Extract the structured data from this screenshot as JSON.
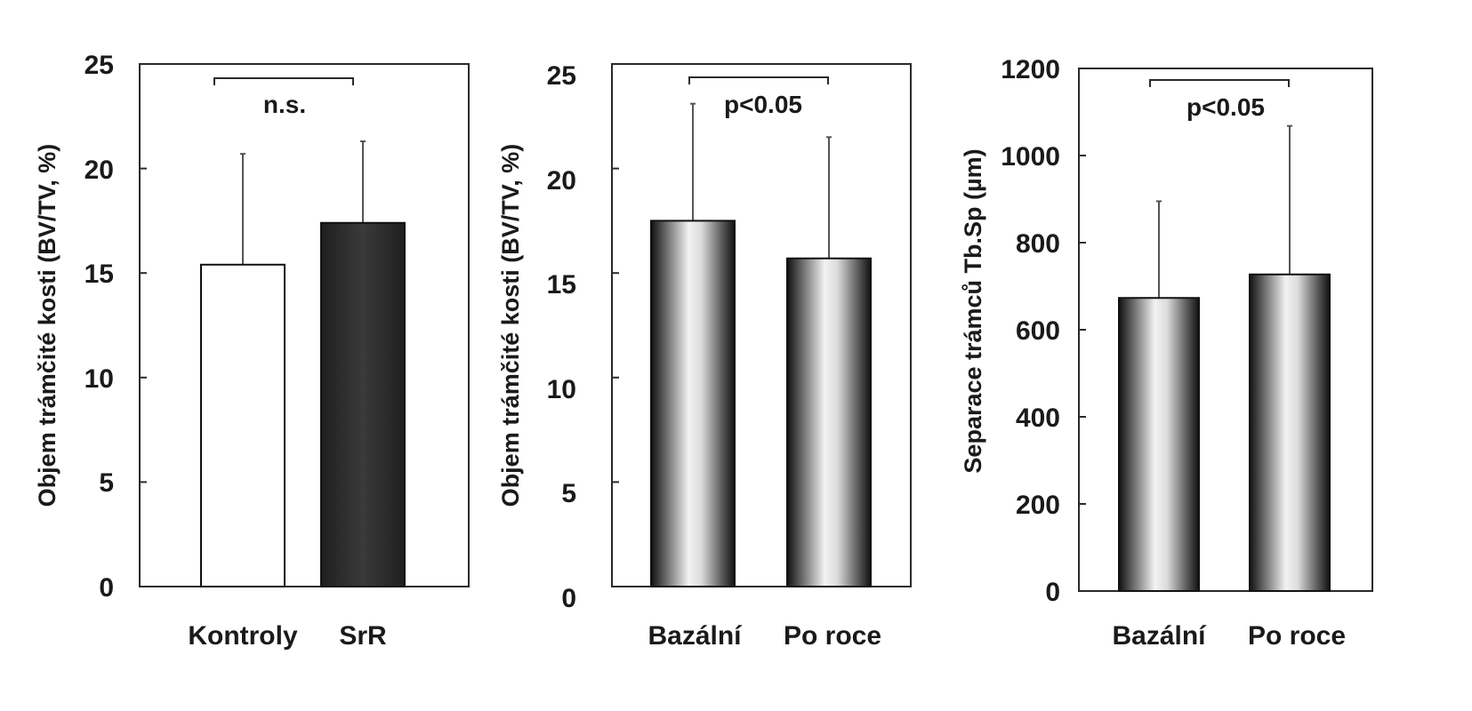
{
  "chart_data": [
    {
      "type": "bar",
      "categories": [
        "Kontroly",
        "SrR"
      ],
      "values": [
        15.4,
        17.4
      ],
      "error_plus": [
        5.3,
        3.9
      ],
      "ylabel": "Objem trámčité kosti (BV/TV, %)",
      "ylim": [
        0,
        25
      ],
      "yticks": [
        0,
        5,
        10,
        15,
        20,
        25
      ],
      "annotation": "n.s.",
      "bar_styles": [
        "white",
        "dark"
      ],
      "grid": false
    },
    {
      "type": "bar",
      "categories": [
        "Bazální",
        "Po roce"
      ],
      "values": [
        17.5,
        15.7
      ],
      "error_plus": [
        5.6,
        5.8
      ],
      "ylabel": "Objem trámčité kosti (BV/TV, %)",
      "ylim": [
        0,
        25
      ],
      "yticks": [
        0,
        5,
        10,
        15,
        20,
        25
      ],
      "annotation": "p<0.05",
      "bar_styles": [
        "gradient",
        "gradient"
      ],
      "grid": false
    },
    {
      "type": "bar",
      "categories": [
        "Bazální",
        "Po roce"
      ],
      "values": [
        673,
        727
      ],
      "error_plus": [
        222,
        341
      ],
      "ylabel": "Separace trámců Tb.Sp (µm)",
      "ylim": [
        0,
        1200
      ],
      "yticks": [
        0,
        200,
        400,
        600,
        800,
        1000,
        1200
      ],
      "annotation": "p<0.05",
      "bar_styles": [
        "gradient",
        "gradient"
      ],
      "grid": false
    }
  ],
  "colors": {
    "axis": "#2a2a2a",
    "bar_white_fill": "#ffffff",
    "bar_dark_fill": "#2e2e2e",
    "gradient_dark": "#111111",
    "gradient_light": "#f2f2f2",
    "error_bar": "#555555"
  }
}
